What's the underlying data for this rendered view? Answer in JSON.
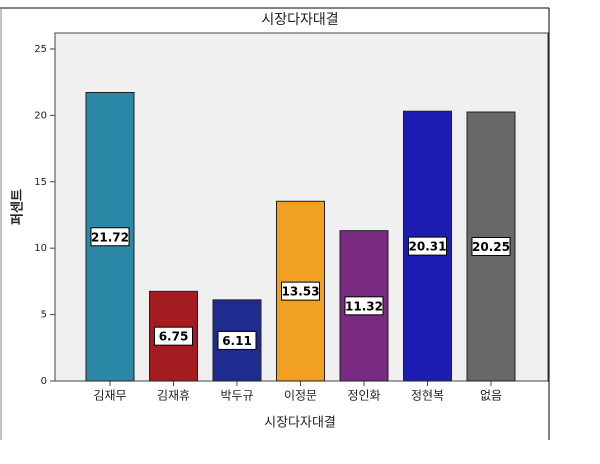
{
  "chart_data": {
    "type": "bar",
    "title": "시장다자대결",
    "x_label": "시장다자대결",
    "y_label": "퍼센트",
    "categories": [
      "김재무",
      "김재휴",
      "박두규",
      "이정문",
      "정인화",
      "정현복",
      "없음"
    ],
    "values": [
      21.72,
      6.75,
      6.11,
      13.53,
      11.32,
      20.31,
      20.25
    ],
    "colors": [
      "#2b88a6",
      "#a41c20",
      "#1f2b8e",
      "#f2a022",
      "#782a80",
      "#1c1cb0",
      "#686868"
    ],
    "ylim": [
      0,
      26.2
    ],
    "yticks": [
      0,
      5,
      10,
      15,
      20,
      25
    ]
  }
}
